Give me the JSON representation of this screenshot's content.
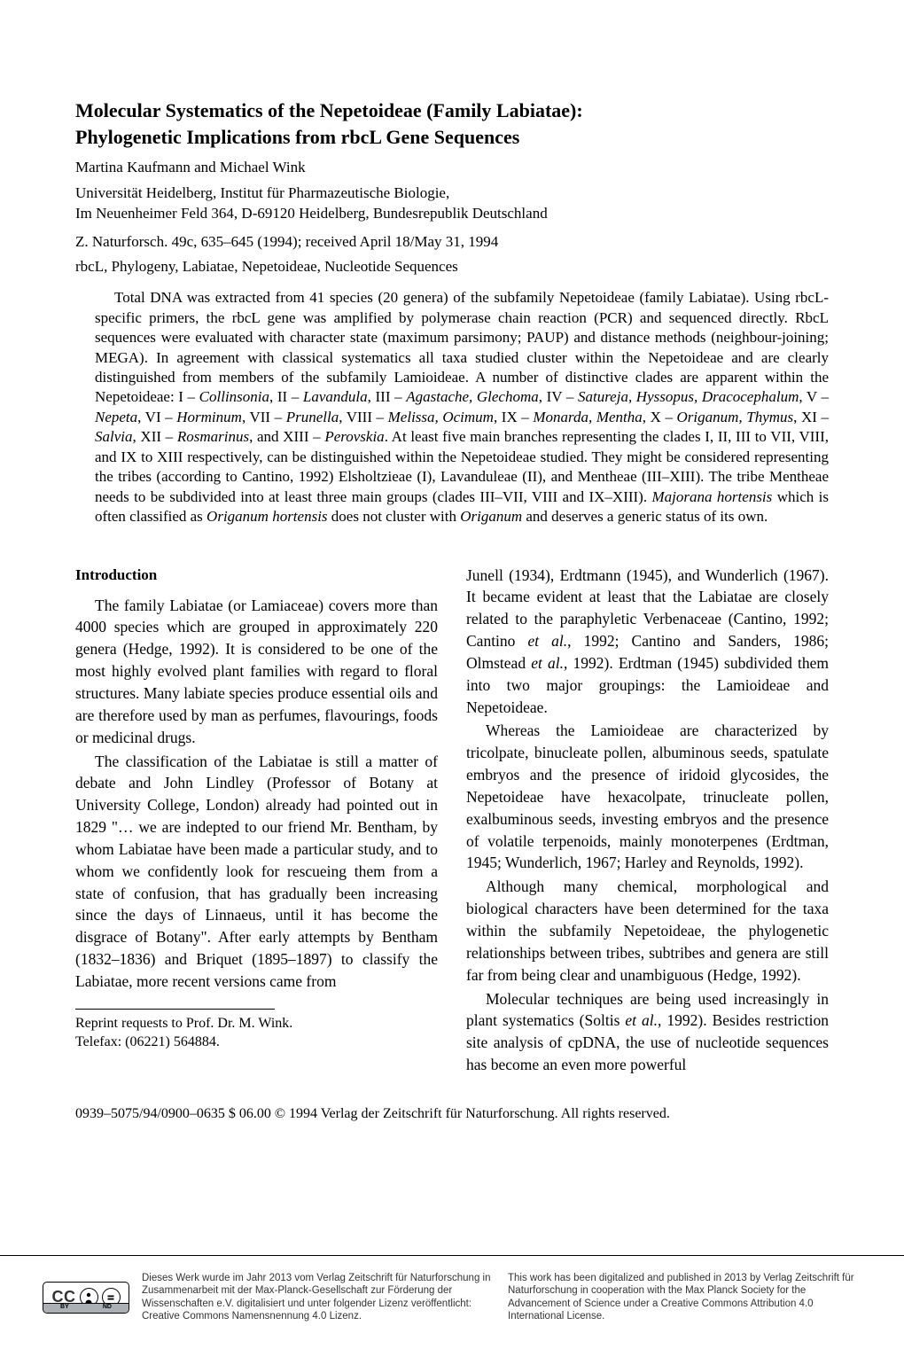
{
  "title_line1": "Molecular Systematics of the Nepetoideae (Family Labiatae):",
  "title_line2": "Phylogenetic Implications from rbcL Gene Sequences",
  "authors": "Martina Kaufmann and Michael Wink",
  "affiliation_line1": "Universität Heidelberg, Institut für Pharmazeutische Biologie,",
  "affiliation_line2": "Im Neuenheimer Feld 364, D-69120 Heidelberg, Bundesrepublik Deutschland",
  "citation": "Z. Naturforsch. 49c, 635–645 (1994); received April 18/May 31, 1994",
  "keywords": "rbcL, Phylogeny, Labiatae, Nepetoideae, Nucleotide Sequences",
  "abstract_html": "Total DNA was extracted from 41 species (20 genera) of the subfamily Nepetoideae (family Labiatae). Using rbcL-specific primers, the rbcL gene was amplified by polymerase chain reaction (PCR) and sequenced directly. RbcL sequences were evaluated with character state (maximum parsimony; PAUP) and distance methods (neighbour-joining; MEGA). In agreement with classical systematics all taxa studied cluster within the Nepetoideae and are clearly distinguished from members of the subfamily Lamioideae. A number of distinctive clades are apparent within the Nepetoideae: I – <span class=\"italic\">Collinsonia</span>, II – <span class=\"italic\">Lavandula</span>, III – <span class=\"italic\">Agastache, Glechoma</span>, IV – <span class=\"italic\">Satureja, Hyssopus, Dracocephalum</span>, V – <span class=\"italic\">Nepeta</span>, VI – <span class=\"italic\">Horminum</span>, VII – <span class=\"italic\">Prunella</span>, VIII – <span class=\"italic\">Melissa, Ocimum</span>, IX – <span class=\"italic\">Monarda, Mentha</span>, X – <span class=\"italic\">Origanum, Thymus</span>, XI – <span class=\"italic\">Salvia</span>, XII – <span class=\"italic\">Rosmarinus</span>, and XIII – <span class=\"italic\">Perovskia</span>. At least five main branches representing the clades I, II, III to VII, VIII, and IX to XIII respectively, can be distinguished within the Nepetoideae studied. They might be considered representing the tribes (according to Cantino, 1992) Elsholtzieae (I), Lavanduleae (II), and Mentheae (III–XIII). The tribe Mentheae needs to be subdivided into at least three main groups (clades III–VII, VIII and IX–XIII). <span class=\"italic\">Majorana hortensis</span> which is often classified as <span class=\"italic\">Origanum hortensis</span> does not cluster with <span class=\"italic\">Origanum</span> and deserves a generic status of its own.",
  "section_heading": "Introduction",
  "col1": {
    "p1": "The family Labiatae (or Lamiaceae) covers more than 4000 species which are grouped in approximately 220 genera (Hedge, 1992). It is considered to be one of the most highly evolved plant families with regard to floral structures. Many labiate species produce essential oils and are therefore used by man as perfumes, flavourings, foods or medicinal drugs.",
    "p2": "The classification of the Labiatae is still a matter of debate and John Lindley (Professor of Botany at University College, London) already had pointed out in 1829 \"… we are indepted to our friend Mr. Bentham, by whom Labiatae have been made a particular study, and to whom we confidently look for rescueing them from a state of confusion, that has gradually been increasing since the days of Linnaeus, until it has become the disgrace of Botany\". After early attempts by Bentham (1832–1836) and Briquet (1895–1897) to classify the Labiatae, more recent versions came from",
    "reprint_l1": "Reprint requests to Prof. Dr. M. Wink.",
    "reprint_l2": "Telefax: (06221) 564884."
  },
  "col2": {
    "p1_html": "Junell (1934), Erdtmann (1945), and Wunderlich (1967). It became evident at least that the Labiatae are closely related to the paraphyletic Verbenaceae (Cantino, 1992; Cantino <span class=\"italic\">et al.</span>, 1992; Cantino and Sanders, 1986; Olmstead <span class=\"italic\">et al.</span>, 1992). Erdtman (1945) subdivided them into two major groupings: the Lamioideae and Nepetoideae.",
    "p2": "Whereas the Lamioideae are characterized by tricolpate, binucleate pollen, albuminous seeds, spatulate embryos and the presence of iridoid glycosides, the Nepetoideae have hexacolpate, trinucleate pollen, exalbuminous seeds, investing embryos and the presence of volatile terpenoids, mainly monoterpenes (Erdtman, 1945; Wunderlich, 1967; Harley and Reynolds, 1992).",
    "p3": "Although many chemical, morphological and biological characters have been determined for the taxa within the subfamily Nepetoideae, the phylogenetic relationships between tribes, subtribes and genera are still far from being clear and unambiguous (Hedge, 1992).",
    "p4_html": "Molecular techniques are being used increasingly in plant systematics (Soltis <span class=\"italic\">et al.</span>, 1992). Besides restriction site analysis of cpDNA, the use of nucleotide sequences has become an even more powerful"
  },
  "footer": "0939–5075/94/0900–0635 $ 06.00   © 1994 Verlag der Zeitschrift für Naturforschung. All rights reserved.",
  "license_de": "Dieses Werk wurde im Jahr 2013 vom Verlag Zeitschrift für Naturforschung in Zusammenarbeit mit der Max-Planck-Gesellschaft zur Förderung der Wissenschaften e.V. digitalisiert und unter folgender Lizenz veröffentlicht: Creative Commons Namensnennung 4.0 Lizenz.",
  "license_en": "This work has been digitalized and published in 2013 by Verlag Zeitschrift für Naturforschung in cooperation with the Max Planck Society for the Advancement of Science under a Creative Commons Attribution 4.0 International License.",
  "cc": {
    "label": "CC",
    "by": "BY",
    "nd": "ND"
  }
}
